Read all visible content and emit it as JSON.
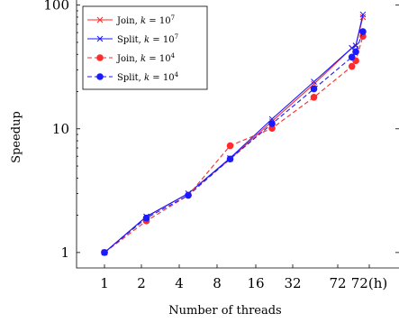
{
  "chart_data": {
    "type": "line",
    "xlabel": "Number of threads",
    "ylabel": "Speedup",
    "xscale": "log",
    "yscale": "log",
    "ylim": [
      0.75,
      110
    ],
    "x_tick_labels": [
      "1",
      "2",
      "4",
      "8",
      "16",
      "32",
      "72",
      "72(h)"
    ],
    "y_tick_labels": [
      "1",
      "10",
      "100"
    ],
    "y_tick_values": [
      1,
      10,
      100
    ],
    "legend_position": "top-left",
    "series": [
      {
        "name": "Join, k = 10^7",
        "label_main": "Join,",
        "label_k": "k",
        "label_eq": " = 10",
        "label_exp": "7",
        "color": "#ff2a2a",
        "line_style": "solid",
        "marker": "x",
        "points": [
          [
            1,
            1
          ],
          [
            2,
            1.95
          ],
          [
            4,
            3.0
          ],
          [
            8,
            5.7
          ],
          [
            16,
            11.5
          ],
          [
            32,
            23.0
          ],
          [
            60,
            45.0
          ],
          [
            64,
            47.0
          ],
          [
            72,
            80.0
          ]
        ]
      },
      {
        "name": "Split, k = 10^7",
        "label_main": "Split,",
        "label_k": "k",
        "label_eq": " = 10",
        "label_exp": "7",
        "color": "#1a1aff",
        "line_style": "solid",
        "marker": "x",
        "points": [
          [
            1,
            1
          ],
          [
            2,
            1.95
          ],
          [
            4,
            3.0
          ],
          [
            8,
            5.8
          ],
          [
            16,
            12.0
          ],
          [
            32,
            24.0
          ],
          [
            60,
            45.0
          ],
          [
            64,
            47.0
          ],
          [
            72,
            84.0
          ]
        ]
      },
      {
        "name": "Join, k = 10^4",
        "label_main": "Join,",
        "label_k": "k",
        "label_eq": " = 10",
        "label_exp": "4",
        "color": "#ff2a2a",
        "line_style": "dashed",
        "marker": "dot",
        "points": [
          [
            1,
            1
          ],
          [
            2,
            1.8
          ],
          [
            4,
            2.9
          ],
          [
            8,
            7.3
          ],
          [
            16,
            10.1
          ],
          [
            32,
            18.0
          ],
          [
            60,
            32.0
          ],
          [
            64,
            35.5
          ],
          [
            72,
            56.0
          ]
        ]
      },
      {
        "name": "Split, k = 10^4",
        "label_main": "Split,",
        "label_k": "k",
        "label_eq": " = 10",
        "label_exp": "4",
        "color": "#1a1aff",
        "line_style": "dashed",
        "marker": "dot",
        "points": [
          [
            1,
            1
          ],
          [
            2,
            1.9
          ],
          [
            4,
            2.9
          ],
          [
            8,
            5.7
          ],
          [
            16,
            11.0
          ],
          [
            32,
            21.0
          ],
          [
            60,
            38.0
          ],
          [
            64,
            42.0
          ],
          [
            72,
            61.0
          ]
        ]
      }
    ]
  }
}
